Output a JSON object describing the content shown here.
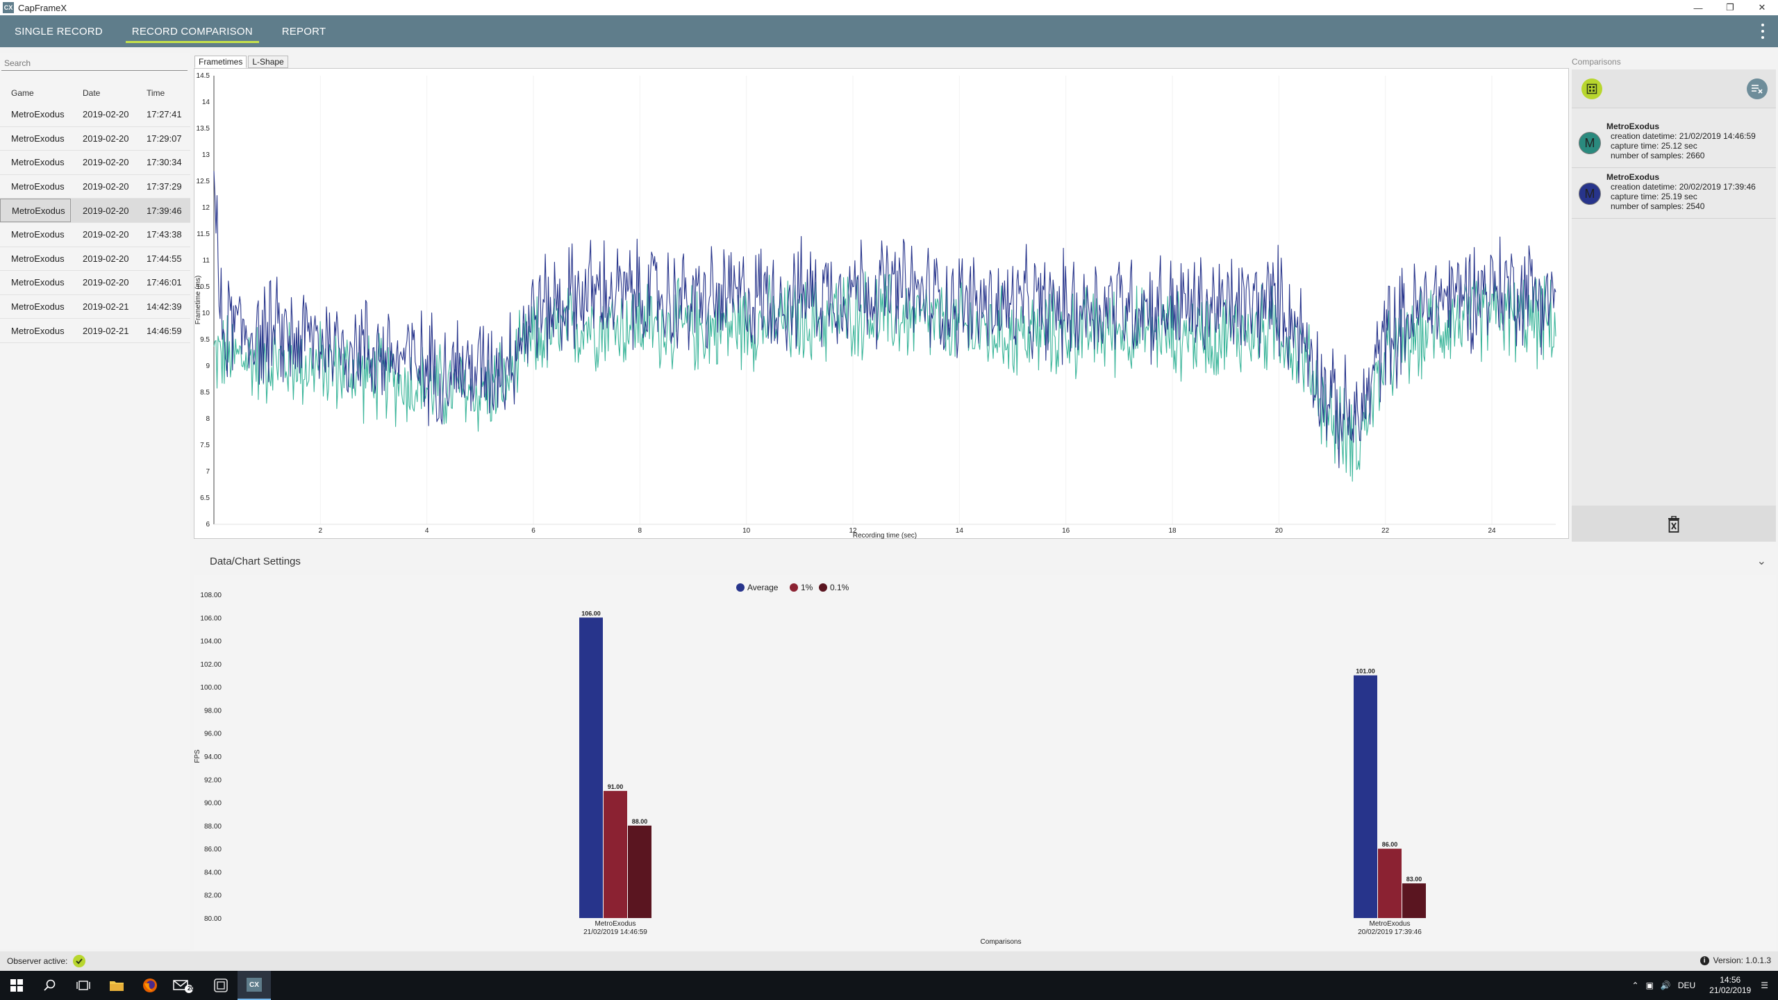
{
  "window": {
    "title": "CapFrameX",
    "app_icon": "CX"
  },
  "nav": {
    "tabs": [
      {
        "label": "SINGLE RECORD",
        "active": false
      },
      {
        "label": "RECORD COMPARISON",
        "active": true
      },
      {
        "label": "REPORT",
        "active": false
      }
    ]
  },
  "records": {
    "search_placeholder": "Search",
    "headers": {
      "game": "Game",
      "date": "Date",
      "time": "Time"
    },
    "rows": [
      {
        "game": "MetroExodus",
        "date": "2019-02-20",
        "time": "17:27:41"
      },
      {
        "game": "MetroExodus",
        "date": "2019-02-20",
        "time": "17:29:07"
      },
      {
        "game": "MetroExodus",
        "date": "2019-02-20",
        "time": "17:30:34"
      },
      {
        "game": "MetroExodus",
        "date": "2019-02-20",
        "time": "17:37:29"
      },
      {
        "game": "MetroExodus",
        "date": "2019-02-20",
        "time": "17:39:46",
        "selected": true
      },
      {
        "game": "MetroExodus",
        "date": "2019-02-20",
        "time": "17:43:38"
      },
      {
        "game": "MetroExodus",
        "date": "2019-02-20",
        "time": "17:44:55"
      },
      {
        "game": "MetroExodus",
        "date": "2019-02-20",
        "time": "17:46:01"
      },
      {
        "game": "MetroExodus",
        "date": "2019-02-21",
        "time": "14:42:39"
      },
      {
        "game": "MetroExodus",
        "date": "2019-02-21",
        "time": "14:46:59"
      }
    ]
  },
  "chart_tabs": [
    {
      "label": "Frametimes",
      "active": true
    },
    {
      "label": "L-Shape",
      "active": false
    }
  ],
  "comparisons": {
    "title": "Comparisons",
    "items": [
      {
        "initial": "M",
        "color": "#2a8a7e",
        "name": "MetroExodus",
        "creation": "creation datetime: 21/02/2019 14:46:59",
        "capture": "capture time: 25.12 sec",
        "samples": "number of samples: 2660"
      },
      {
        "initial": "M",
        "color": "#27348b",
        "name": "MetroExodus",
        "creation": "creation datetime: 20/02/2019 17:39:46",
        "capture": "capture time: 25.19 sec",
        "samples": "number of samples: 2540"
      }
    ]
  },
  "settings": {
    "label": "Data/Chart Settings"
  },
  "chart_data": [
    {
      "type": "line",
      "title": "",
      "xlabel": "Recording time (sec)",
      "ylabel": "Frametime (ms)",
      "xlim": [
        0,
        25.2
      ],
      "ylim": [
        6,
        14.5
      ],
      "x_ticks": [
        2,
        4,
        6,
        8,
        10,
        12,
        14,
        16,
        18,
        20,
        22,
        24
      ],
      "y_ticks": [
        6,
        6.5,
        7,
        7.5,
        8,
        8.5,
        9,
        9.5,
        10,
        10.5,
        11,
        11.5,
        12,
        12.5,
        13,
        13.5,
        14,
        14.5
      ],
      "trend_x": [
        0,
        1,
        2,
        3,
        4,
        5,
        5.5,
        6,
        7,
        8,
        9,
        10,
        11,
        12,
        13,
        14,
        15,
        16,
        17,
        18,
        19,
        20,
        20.5,
        21,
        21.5,
        22,
        23,
        24,
        25,
        25.2
      ],
      "series": [
        {
          "color": "#27348b",
          "trend_y": [
            9.8,
            9.6,
            9.5,
            9.3,
            9.0,
            8.9,
            9.1,
            10.0,
            10.4,
            10.3,
            10.2,
            10.3,
            10.3,
            10.5,
            10.4,
            10.2,
            10.1,
            10.1,
            10.2,
            10.1,
            10.1,
            10.2,
            9.5,
            8.2,
            7.9,
            9.6,
            10.3,
            10.5,
            10.4,
            10.3
          ]
        },
        {
          "color": "#3bb59a",
          "trend_y": [
            9.2,
            9.1,
            9.0,
            8.8,
            8.6,
            8.5,
            8.7,
            9.5,
            9.8,
            9.8,
            9.7,
            9.8,
            9.8,
            10.0,
            9.9,
            9.7,
            9.6,
            9.6,
            9.7,
            9.6,
            9.6,
            9.7,
            9.1,
            7.9,
            7.6,
            9.1,
            9.8,
            10.0,
            9.8,
            9.7
          ]
        }
      ]
    },
    {
      "type": "bar",
      "title": "",
      "xlabel": "Comparisons",
      "ylabel": "FPS",
      "ylim": [
        80,
        108
      ],
      "y_ticks": [
        80,
        82,
        84,
        86,
        88,
        90,
        92,
        94,
        96,
        98,
        100,
        102,
        104,
        106,
        108
      ],
      "legend_position": "top-center",
      "categories": [
        "MetroExodus|21/02/2019 14:46:59",
        "MetroExodus|20/02/2019 17:39:46"
      ],
      "series": [
        {
          "name": "Average",
          "color": "#27348b",
          "values": [
            106,
            101
          ]
        },
        {
          "name": "1%",
          "color": "#8b2232",
          "values": [
            91,
            86
          ]
        },
        {
          "name": "0.1%",
          "color": "#5a1520",
          "values": [
            88,
            83
          ]
        }
      ]
    }
  ],
  "status": {
    "observer_label": "Observer active:",
    "version": "Version: 1.0.1.3"
  },
  "taskbar": {
    "language": "DEU",
    "time": "14:56",
    "date": "21/02/2019",
    "mail_badge": "20"
  }
}
